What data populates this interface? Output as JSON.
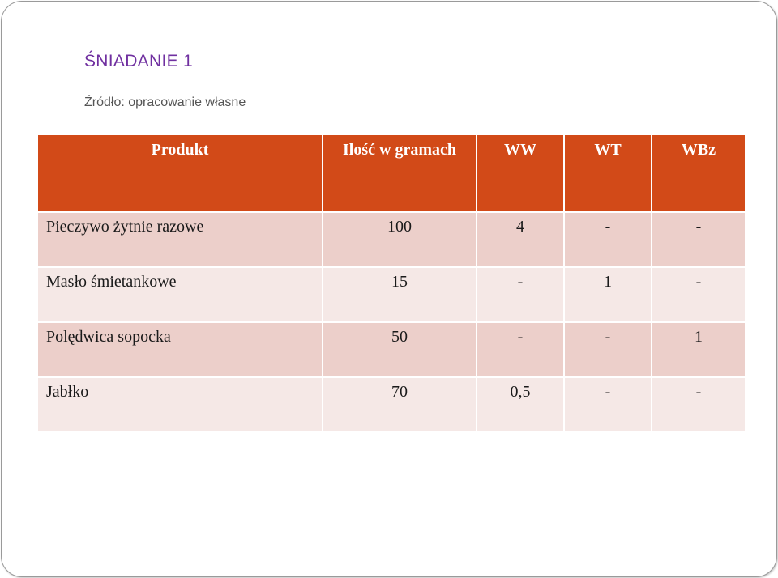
{
  "slide": {
    "title": "ŚNIADANIE  1",
    "source": "Źródło: opracowanie własne"
  },
  "table": {
    "headers": [
      "Produkt",
      "Ilość w gramach",
      "WW",
      "WT",
      "WBz"
    ],
    "rows": [
      [
        "Pieczywo żytnie razowe",
        "100",
        "4",
        "-",
        "-"
      ],
      [
        "Masło śmietankowe",
        "15",
        "-",
        "1",
        "-"
      ],
      [
        "Polędwica sopocka",
        "50",
        "-",
        "-",
        "1"
      ],
      [
        "Jabłko",
        "70",
        "0,5",
        "-",
        "-"
      ]
    ]
  },
  "colors": {
    "header_bg": "#d24a18",
    "row_odd_bg": "#eccfca",
    "row_even_bg": "#f5e8e6",
    "title_color": "#7030a0"
  }
}
